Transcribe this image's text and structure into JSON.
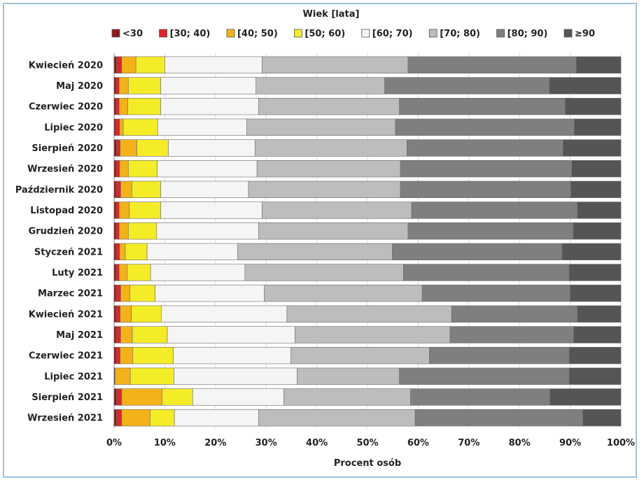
{
  "chart_data": {
    "type": "bar",
    "orientation": "horizontal",
    "stacked": true,
    "title": "Wiek [lata]",
    "xlabel": "Procent osób",
    "xlim": [
      0,
      100
    ],
    "xticks": [
      "0%",
      "10%",
      "20%",
      "30%",
      "40%",
      "50%",
      "60%",
      "70%",
      "80%",
      "90%",
      "100%"
    ],
    "legend_position": "top",
    "categories": [
      "Kwiecień 2020",
      "Maj 2020",
      "Czerwiec 2020",
      "Lipiec 2020",
      "Sierpień 2020",
      "Wrzesień 2020",
      "Październik 2020",
      "Listopad 2020",
      "Grudzień 2020",
      "Styczeń 2021",
      "Luty 2021",
      "Marzec 2021",
      "Kwiecień 2021",
      "Maj 2021",
      "Czerwiec 2021",
      "Lipiec 2021",
      "Sierpień 2021",
      "Wrzesień 2021"
    ],
    "series": [
      {
        "name": "<30",
        "color": "#8b1a1a",
        "values": [
          0.5,
          0.4,
          0.4,
          0.3,
          0.5,
          0.4,
          0.4,
          0.4,
          0.4,
          0.4,
          0.4,
          0.4,
          0.4,
          0.4,
          0.4,
          0.1,
          0.5,
          0.5
        ]
      },
      {
        "name": "[30; 40)",
        "color": "#d9262c",
        "values": [
          1.0,
          0.6,
          0.6,
          0.8,
          0.7,
          0.7,
          0.9,
          0.6,
          0.6,
          0.7,
          0.6,
          0.9,
          0.8,
          0.9,
          0.8,
          0.1,
          1.0,
          1.0
        ]
      },
      {
        "name": "[40; 50)",
        "color": "#f4b21a",
        "values": [
          2.8,
          1.8,
          1.7,
          0.7,
          3.3,
          1.7,
          2.2,
          2.0,
          1.8,
          1.1,
          1.6,
          1.8,
          2.2,
          2.3,
          2.5,
          3.0,
          8.0,
          5.6
        ]
      },
      {
        "name": "[50; 60)",
        "color": "#f5ec28",
        "values": [
          5.7,
          6.4,
          6.5,
          6.8,
          6.2,
          5.7,
          5.7,
          6.2,
          5.6,
          4.3,
          4.6,
          5.0,
          5.9,
          6.9,
          8.0,
          8.6,
          6.0,
          4.8
        ]
      },
      {
        "name": "[60; 70)",
        "color": "#f5f5f5",
        "values": [
          19.2,
          18.8,
          19.3,
          17.6,
          17.1,
          19.7,
          17.3,
          20.0,
          20.1,
          17.9,
          18.6,
          21.5,
          24.8,
          25.2,
          23.2,
          24.3,
          18.0,
          16.6
        ]
      },
      {
        "name": "[70; 80)",
        "color": "#bdbdbd",
        "values": [
          28.8,
          25.4,
          27.8,
          29.3,
          30.0,
          28.3,
          30.0,
          29.5,
          29.5,
          30.5,
          31.3,
          31.2,
          32.5,
          30.6,
          27.3,
          20.2,
          25.0,
          30.9
        ]
      },
      {
        "name": "[80; 90)",
        "color": "#7f7f7f",
        "values": [
          33.2,
          32.5,
          32.7,
          35.3,
          30.8,
          33.8,
          33.6,
          32.7,
          32.6,
          33.5,
          32.7,
          29.2,
          24.8,
          24.4,
          27.6,
          33.5,
          27.5,
          33.1
        ]
      },
      {
        "name": "≥90",
        "color": "#555555",
        "values": [
          8.8,
          14.1,
          11.0,
          9.2,
          11.4,
          9.7,
          9.9,
          8.6,
          9.4,
          11.6,
          10.2,
          10.0,
          8.6,
          9.3,
          10.2,
          10.2,
          14.0,
          7.5
        ]
      }
    ]
  }
}
